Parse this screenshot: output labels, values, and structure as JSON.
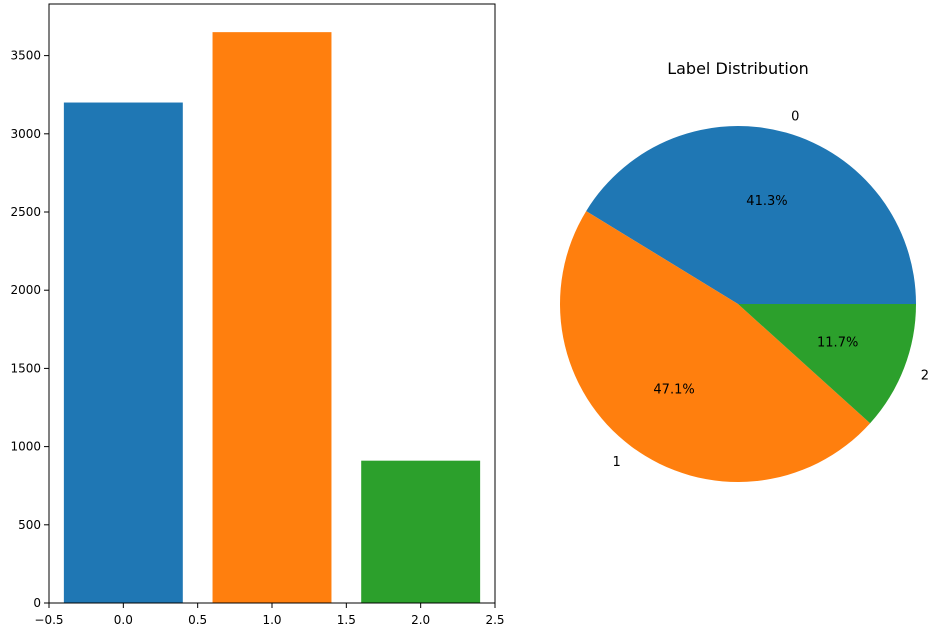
{
  "colors": {
    "c0": "#1f77b4",
    "c1": "#ff7f0e",
    "c2": "#2ca02c"
  },
  "chart_data": [
    {
      "type": "bar",
      "title": "",
      "xlabel": "",
      "ylabel": "",
      "x": [
        0.0,
        1.0,
        2.0
      ],
      "values": [
        3200,
        3650,
        910
      ],
      "bar_width": 0.8,
      "bar_colors": [
        "#1f77b4",
        "#ff7f0e",
        "#2ca02c"
      ],
      "xlim": [
        -0.5,
        2.5
      ],
      "ylim": [
        0,
        3830
      ],
      "xticks": [
        -0.5,
        0.0,
        0.5,
        1.0,
        1.5,
        2.0,
        2.5
      ],
      "xtick_labels": [
        "−0.5",
        "0.0",
        "0.5",
        "1.0",
        "1.5",
        "2.0",
        "2.5"
      ],
      "yticks": [
        0,
        500,
        1000,
        1500,
        2000,
        2500,
        3000,
        3500
      ],
      "ytick_labels": [
        "0",
        "500",
        "1000",
        "1500",
        "2000",
        "2500",
        "3000",
        "3500"
      ],
      "grid": false
    },
    {
      "type": "pie",
      "title": "Label Distribution",
      "labels": [
        "0",
        "1",
        "2"
      ],
      "percentages": [
        41.3,
        47.1,
        11.7
      ],
      "pct_labels": [
        "41.3%",
        "47.1%",
        "11.7%"
      ],
      "colors": [
        "#1f77b4",
        "#ff7f0e",
        "#2ca02c"
      ],
      "start_angle_deg": 0,
      "direction": "counterclockwise"
    }
  ]
}
